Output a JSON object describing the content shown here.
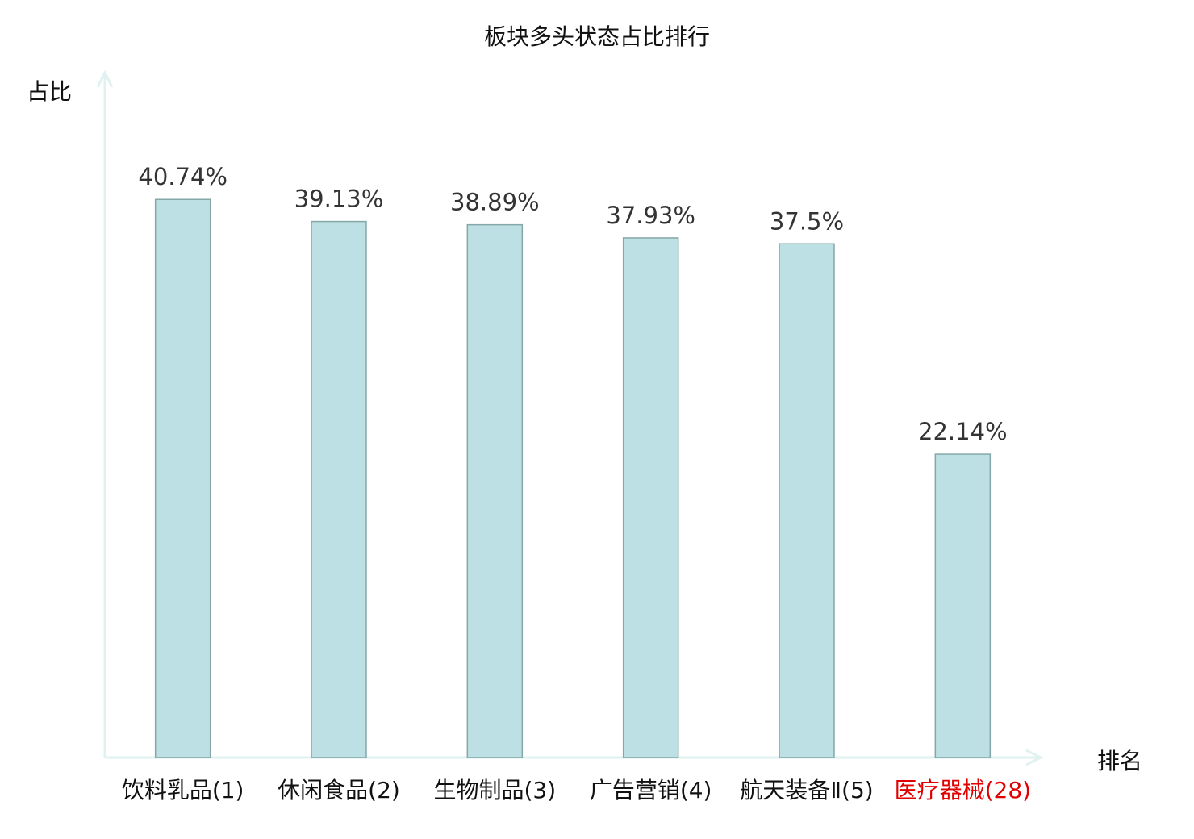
{
  "chart_data": {
    "type": "bar",
    "title": "板块多头状态占比排行",
    "xlabel": "排名",
    "ylabel": "占比",
    "categories": [
      "饮料乳品(1)",
      "休闲食品(2)",
      "生物制品(3)",
      "广告营销(4)",
      "航天装备Ⅱ(5)",
      "医疗器械(28)"
    ],
    "values": [
      40.74,
      39.13,
      38.89,
      37.93,
      37.5,
      22.14
    ],
    "data_labels": [
      "40.74%",
      "39.13%",
      "38.89%",
      "37.93%",
      "37.5%",
      "22.14%"
    ],
    "highlight_category": "医疗器械(28)",
    "ylim": [
      0,
      50
    ],
    "grid": false,
    "colors": {
      "bar": "#bce0e3",
      "bar_border": "#86a7a8",
      "axis": "#dff2f0",
      "highlight_label": "#e00000",
      "label": "#111111"
    }
  }
}
